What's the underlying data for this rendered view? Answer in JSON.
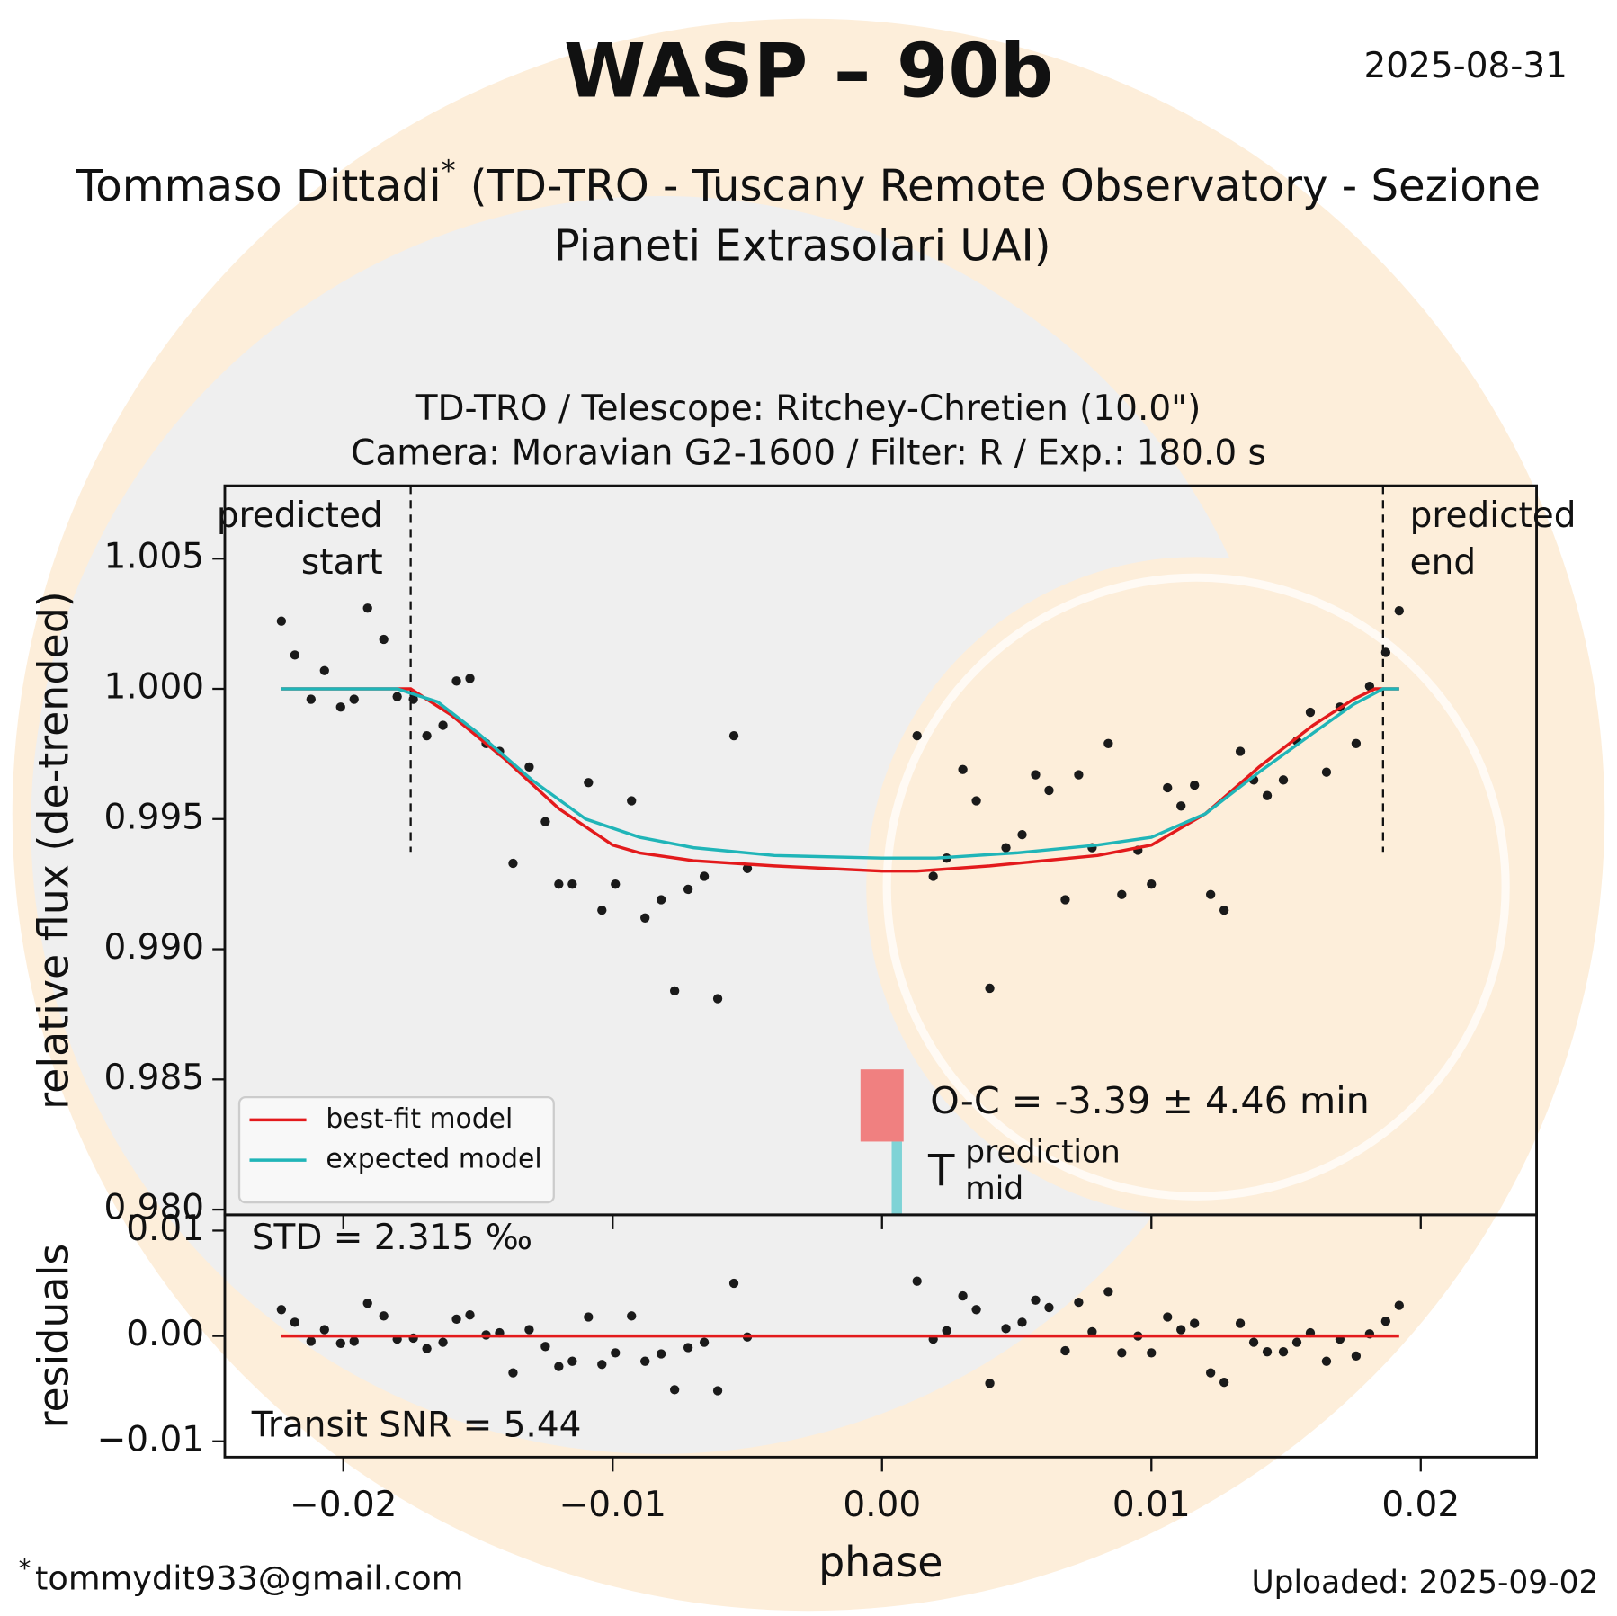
{
  "title": "WASP – 90b",
  "date": "2025-08-31",
  "observer": {
    "name": "Tommaso Dittadi",
    "mark": "*",
    "affiliation": [
      "(TD-TRO - Tuscany Remote Observatory - Sezione",
      "Pianeti Extrasolari UAI)"
    ]
  },
  "footer": {
    "mark": "*",
    "email": "tommydit933@gmail.com",
    "uploaded": "Uploaded: 2025-09-02"
  },
  "chart_data": [
    {
      "type": "scatter",
      "title": [
        "TD-TRO / Telescope: Ritchey-Chretien (10.0\")",
        "Camera: Moravian G2-1600 / Filter: R / Exp.: 180.0 s"
      ],
      "ylabel": "relative flux (de-trended)",
      "xlim": [
        -0.0244,
        0.0243
      ],
      "xticks": [
        -0.02,
        -0.01,
        0,
        0.01,
        0.02
      ],
      "xticklabels": false,
      "ylim": [
        0.9798,
        1.0078
      ],
      "yticks": [
        {
          "value": 0.98,
          "label": "0.980"
        },
        0.985,
        {
          "value": 0.99,
          "label": "0.990"
        },
        0.995,
        {
          "value": 1.0,
          "label": "1.000"
        },
        1.005
      ],
      "series": [
        {
          "style": "points",
          "color": "#1a1a1a",
          "x": [
            -0.0223,
            -0.0218,
            -0.0212,
            -0.0207,
            -0.0201,
            -0.0196,
            -0.0191,
            -0.0185,
            -0.018,
            -0.0174,
            -0.0169,
            -0.0163,
            -0.0158,
            -0.0153,
            -0.0147,
            -0.0142,
            -0.0137,
            -0.0131,
            -0.0125,
            -0.012,
            -0.0115,
            -0.0109,
            -0.0104,
            -0.0099,
            -0.0093,
            -0.0088,
            -0.0082,
            -0.0077,
            -0.0072,
            -0.0066,
            -0.0061,
            -0.0055,
            -0.005,
            0.0013,
            0.0019,
            0.0024,
            0.003,
            0.0035,
            0.004,
            0.0046,
            0.0052,
            0.0057,
            0.0062,
            0.0068,
            0.0073,
            0.0078,
            0.0084,
            0.0089,
            0.0095,
            0.01,
            0.0106,
            0.0111,
            0.0116,
            0.0122,
            0.0127,
            0.0133,
            0.0138,
            0.0143,
            0.0149,
            0.0154,
            0.0159,
            0.0165,
            0.017,
            0.0176,
            0.0181,
            0.0187,
            0.0192
          ],
          "values": [
            1.0026,
            1.0013,
            0.9996,
            1.0007,
            0.9993,
            0.9996,
            1.0031,
            1.0019,
            0.9997,
            0.9996,
            0.9982,
            0.9986,
            1.0003,
            1.0004,
            0.9979,
            0.9976,
            0.9933,
            0.997,
            0.9949,
            0.9925,
            0.9925,
            0.9964,
            0.9915,
            0.9925,
            0.9957,
            0.9912,
            0.9919,
            0.9884,
            0.9923,
            0.9928,
            0.9881,
            0.9982,
            0.9931,
            0.9982,
            0.9928,
            0.9935,
            0.9969,
            0.9957,
            0.9885,
            0.9939,
            0.9944,
            0.9967,
            0.9961,
            0.9919,
            0.9967,
            0.9939,
            0.9979,
            0.9921,
            0.9938,
            0.9925,
            0.9962,
            0.9955,
            0.9963,
            0.9921,
            0.9915,
            0.9976,
            0.9965,
            0.9959,
            0.9965,
            0.998,
            0.9991,
            0.9968,
            0.9993,
            0.9979,
            1.0001,
            1.0014,
            1.003
          ]
        },
        {
          "style": "line",
          "name": "best-fit model",
          "color": "#e31a1c",
          "x": [
            -0.0223,
            -0.0175,
            -0.016,
            -0.014,
            -0.012,
            -0.01,
            -0.009,
            -0.007,
            -0.004,
            0.0,
            0.0013,
            0.004,
            0.008,
            0.01,
            0.012,
            0.014,
            0.016,
            0.0175,
            0.0183,
            0.0192
          ],
          "values": [
            1.0,
            1.0,
            0.999,
            0.9973,
            0.9954,
            0.994,
            0.9937,
            0.9934,
            0.9932,
            0.993,
            0.993,
            0.9932,
            0.9936,
            0.994,
            0.9952,
            0.997,
            0.9986,
            0.9996,
            1.0,
            1.0
          ]
        },
        {
          "style": "line",
          "name": "expected model",
          "color": "#20b5b8",
          "x": [
            -0.0223,
            -0.018,
            -0.0165,
            -0.015,
            -0.013,
            -0.011,
            -0.009,
            -0.007,
            -0.004,
            0.0,
            0.002,
            0.005,
            0.008,
            0.01,
            0.012,
            0.014,
            0.016,
            0.0175,
            0.0186,
            0.0192
          ],
          "values": [
            1.0,
            1.0,
            0.9995,
            0.9983,
            0.9965,
            0.995,
            0.9943,
            0.9939,
            0.9936,
            0.9935,
            0.9935,
            0.9937,
            0.994,
            0.9943,
            0.9952,
            0.9968,
            0.9983,
            0.9994,
            1.0,
            1.0
          ]
        }
      ],
      "predicted_start": -0.0175,
      "predicted_start_label": [
        "predicted",
        "start"
      ],
      "predicted_end": 0.0186,
      "predicted_end_label": [
        "predicted",
        "end"
      ],
      "oc_range": [
        -0.0008,
        0.0008
      ],
      "oc_color": "#f08080",
      "tmid_prediction": 0.00055,
      "tmid_color": "#7fd3d6",
      "oc_text": "O-C = -3.39 ± 4.46 min",
      "tmid_label": {
        "symbol": "T",
        "sup": "prediction",
        "sub": "mid"
      },
      "legend": "lower left"
    },
    {
      "type": "scatter",
      "ylabel": "residuals",
      "xlabel": "phase",
      "xlim": [
        -0.0244,
        0.0243
      ],
      "xticks": [
        {
          "value": -0.02,
          "label": "−0.02"
        },
        {
          "value": -0.01,
          "label": "−0.01"
        },
        {
          "value": 0,
          "label": "0.00"
        },
        0.01,
        0.02
      ],
      "xticklabels": true,
      "ylim": [
        -0.0115,
        0.0115
      ],
      "yticks": [
        {
          "value": -0.01,
          "label": "−0.01"
        },
        {
          "value": 0,
          "label": "0.00"
        },
        0.01
      ],
      "series": [
        {
          "style": "points",
          "color": "#1a1a1a",
          "x": [
            -0.0223,
            -0.0218,
            -0.0212,
            -0.0207,
            -0.0201,
            -0.0196,
            -0.0191,
            -0.0185,
            -0.018,
            -0.0174,
            -0.0169,
            -0.0163,
            -0.0158,
            -0.0153,
            -0.0147,
            -0.0142,
            -0.0137,
            -0.0131,
            -0.0125,
            -0.012,
            -0.0115,
            -0.0109,
            -0.0104,
            -0.0099,
            -0.0093,
            -0.0088,
            -0.0082,
            -0.0077,
            -0.0072,
            -0.0066,
            -0.0061,
            -0.0055,
            -0.005,
            0.0013,
            0.0019,
            0.0024,
            0.003,
            0.0035,
            0.004,
            0.0046,
            0.0052,
            0.0057,
            0.0062,
            0.0068,
            0.0073,
            0.0078,
            0.0084,
            0.0089,
            0.0095,
            0.01,
            0.0106,
            0.0111,
            0.0116,
            0.0122,
            0.0127,
            0.0133,
            0.0138,
            0.0143,
            0.0149,
            0.0154,
            0.0159,
            0.0165,
            0.017,
            0.0176,
            0.0181,
            0.0187,
            0.0192
          ],
          "values": [
            0.0025,
            0.0013,
            -0.0005,
            0.0006,
            -0.0007,
            -0.0005,
            0.0031,
            0.0019,
            -0.0003,
            -0.0002,
            -0.0012,
            -0.0006,
            0.0016,
            0.002,
            0.0001,
            0.0003,
            -0.0035,
            0.0006,
            -0.001,
            -0.0029,
            -0.0024,
            0.0018,
            -0.0027,
            -0.0016,
            0.0019,
            -0.0024,
            -0.0017,
            -0.0051,
            -0.0011,
            -0.0006,
            -0.0052,
            0.005,
            -0.0001,
            0.0052,
            -0.0003,
            0.0005,
            0.0038,
            0.0025,
            -0.0045,
            0.0007,
            0.0013,
            0.0034,
            0.0027,
            -0.0014,
            0.0032,
            0.0004,
            0.0042,
            -0.0016,
            0.0,
            -0.0016,
            0.0018,
            0.0006,
            0.0012,
            -0.0035,
            -0.0044,
            0.0012,
            -0.0006,
            -0.0015,
            -0.0015,
            -0.0006,
            0.0003,
            -0.0024,
            -0.0003,
            -0.0019,
            0.0002,
            0.0014,
            0.0029
          ]
        },
        {
          "style": "line",
          "color": "#e31a1c",
          "x": [
            -0.0223,
            0.0192
          ],
          "values": [
            0,
            0
          ]
        }
      ],
      "std_text": "STD = 2.315 ‰",
      "snr_text": "Transit SNR = 5.44"
    }
  ]
}
